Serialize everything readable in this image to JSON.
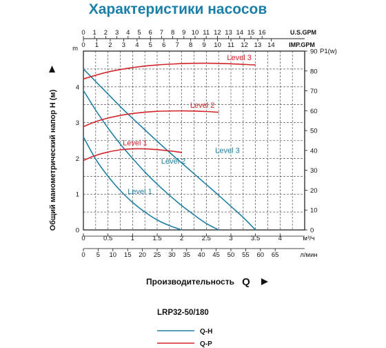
{
  "chart_data": {
    "type": "line",
    "title": "Характеристики насосов",
    "model": "LRP32-50/180",
    "ylabel_left": "Общий манометрический напор H (м)",
    "xlabel": "Производительность",
    "xlabel_symbol": "Q",
    "left_axis": {
      "unit": "m",
      "ticks": [
        "0",
        "1",
        "2",
        "3",
        "4"
      ],
      "ylim": [
        0,
        5
      ]
    },
    "right_axis": {
      "unit": "P1(w)",
      "ticks": [
        "0",
        "10",
        "20",
        "30",
        "40",
        "50",
        "60",
        "70",
        "80",
        "90"
      ],
      "ylim": [
        0,
        90
      ]
    },
    "top_axis_usgpm": {
      "unit": "U.S.GPM",
      "ticks": [
        "0",
        "1",
        "2",
        "3",
        "4",
        "5",
        "6",
        "7",
        "8",
        "9",
        "10",
        "11",
        "12",
        "13",
        "14",
        "15",
        "16"
      ]
    },
    "top_axis_impgpm": {
      "unit": "IMP.GPM",
      "ticks": [
        "0",
        "1",
        "2",
        "3",
        "4",
        "5",
        "6",
        "7",
        "8",
        "9",
        "10",
        "11",
        "12",
        "13",
        "14"
      ]
    },
    "bottom_axis_m3h": {
      "unit": "м³/ч",
      "ticks": [
        "0",
        "0.5",
        "1",
        "1.5",
        "2",
        "2.5",
        "3",
        "3.5",
        "4"
      ],
      "xlim": [
        0,
        4.5
      ]
    },
    "bottom_axis_lmin": {
      "unit": "л/мин",
      "ticks": [
        "0",
        "5",
        "10",
        "15",
        "20",
        "25",
        "30",
        "35",
        "40",
        "45",
        "50",
        "55",
        "60",
        "65"
      ]
    },
    "grid": true,
    "legend": {
      "position": "bottom",
      "entries": [
        {
          "name": "Q-H",
          "color": "#1f7ea3"
        },
        {
          "name": "Q-P",
          "color": "#d2232a"
        }
      ]
    },
    "qh_series": [
      {
        "name": "Level 1",
        "x": [
          0,
          0.25,
          0.5,
          0.75,
          1.0,
          1.25,
          1.5,
          1.75,
          2.0
        ],
        "y": [
          2.6,
          1.98,
          1.5,
          1.1,
          0.77,
          0.5,
          0.28,
          0.12,
          0.0
        ]
      },
      {
        "name": "Level 2",
        "x": [
          0,
          0.25,
          0.5,
          0.75,
          1.0,
          1.25,
          1.5,
          1.75,
          2.0,
          2.25,
          2.5,
          2.75
        ],
        "y": [
          3.9,
          3.35,
          2.85,
          2.4,
          2.0,
          1.62,
          1.28,
          0.97,
          0.68,
          0.42,
          0.18,
          0.0
        ]
      },
      {
        "name": "Level 3",
        "x": [
          0,
          0.25,
          0.5,
          0.75,
          1.0,
          1.25,
          1.5,
          1.75,
          2.0,
          2.25,
          2.5,
          2.75,
          3.0,
          3.25,
          3.5
        ],
        "y": [
          4.5,
          4.15,
          3.8,
          3.45,
          3.12,
          2.8,
          2.48,
          2.17,
          1.87,
          1.57,
          1.27,
          0.97,
          0.66,
          0.35,
          0.0
        ]
      }
    ],
    "qp_series": [
      {
        "name": "Level 1",
        "x": [
          0,
          0.25,
          0.5,
          0.75,
          1.0,
          1.25,
          1.5,
          1.75,
          2.0
        ],
        "y": [
          35,
          37.5,
          39.2,
          40.3,
          40.8,
          40.8,
          40.4,
          39.8,
          39.0
        ]
      },
      {
        "name": "Level 2",
        "x": [
          0,
          0.25,
          0.5,
          0.75,
          1.0,
          1.5,
          2.0,
          2.5,
          2.75
        ],
        "y": [
          52,
          54.5,
          56.3,
          57.6,
          58.6,
          59.7,
          59.9,
          59.6,
          59.2
        ]
      },
      {
        "name": "Level 3",
        "x": [
          0,
          0.5,
          1.0,
          1.5,
          2.0,
          2.5,
          3.0,
          3.5
        ],
        "y": [
          76,
          79.5,
          81.7,
          83.0,
          83.7,
          83.9,
          83.6,
          83.0
        ]
      }
    ],
    "colors": {
      "qh": "#1f7ea3",
      "qp": "#d2232a",
      "title": "#1b7fa8",
      "grid": "#333333"
    }
  }
}
